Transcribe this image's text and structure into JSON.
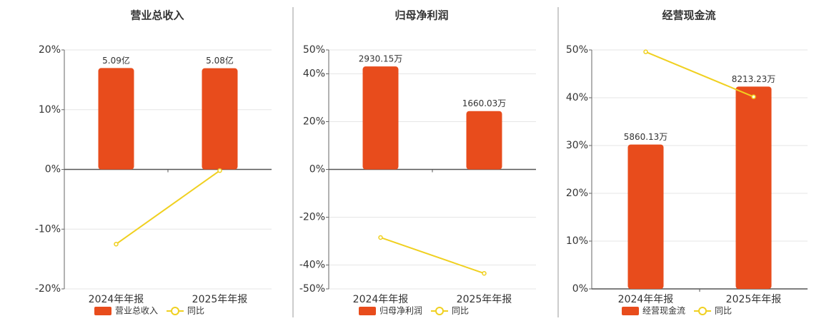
{
  "chart_data": [
    {
      "type": "bar",
      "title": "营业总收入",
      "categories": [
        "2024年年报",
        "2025年年报"
      ],
      "series": [
        {
          "name": "营业总收入",
          "type": "bar",
          "color": "#e84c1c",
          "axis": "y2",
          "values": [
            5.09,
            5.08
          ],
          "value_labels": [
            "5.09亿",
            "5.08亿"
          ]
        },
        {
          "name": "同比",
          "type": "line",
          "color": "#f0d020",
          "values": [
            -12.5,
            -0.2
          ]
        }
      ],
      "ylim": [
        -20,
        20
      ],
      "yticks": [
        {
          "value": -20,
          "label": "-20%"
        },
        {
          "value": -10,
          "label": "-10%"
        },
        {
          "value": 0,
          "label": "0%"
        },
        {
          "value": 10,
          "label": "10%"
        },
        {
          "value": 20,
          "label": "20%"
        }
      ],
      "y2lim": [
        -6,
        6
      ],
      "grid": true
    },
    {
      "type": "bar",
      "title": "归母净利润",
      "categories": [
        "2024年年报",
        "2025年年报"
      ],
      "series": [
        {
          "name": "归母净利润",
          "type": "bar",
          "color": "#e84c1c",
          "axis": "y2",
          "values": [
            2930.15,
            1660.03
          ],
          "value_labels": [
            "2930.15万",
            "1660.03万"
          ]
        },
        {
          "name": "同比",
          "type": "line",
          "color": "#f0d020",
          "values": [
            -28.5,
            -43.5
          ]
        }
      ],
      "ylim": [
        -50,
        50
      ],
      "yticks": [
        {
          "value": -50,
          "label": "-50%"
        },
        {
          "value": -40,
          "label": "-40%"
        },
        {
          "value": -20,
          "label": "-20%"
        },
        {
          "value": 0,
          "label": "0%"
        },
        {
          "value": 20,
          "label": "20%"
        },
        {
          "value": 40,
          "label": "40%"
        },
        {
          "value": 50,
          "label": "50%"
        }
      ],
      "y2lim": [
        -3400,
        3400
      ],
      "grid": true
    },
    {
      "type": "bar",
      "title": "经营现金流",
      "categories": [
        "2024年年报",
        "2025年年报"
      ],
      "series": [
        {
          "name": "经营现金流",
          "type": "bar",
          "color": "#e84c1c",
          "axis": "y2",
          "values": [
            5860.13,
            8213.23
          ],
          "value_labels": [
            "5860.13万",
            "8213.23万"
          ]
        },
        {
          "name": "同比",
          "type": "line",
          "color": "#f0d020",
          "values": [
            49.6,
            40.2
          ]
        }
      ],
      "ylim": [
        0,
        50
      ],
      "yticks": [
        {
          "value": 0,
          "label": "0%"
        },
        {
          "value": 10,
          "label": "10%"
        },
        {
          "value": 20,
          "label": "20%"
        },
        {
          "value": 30,
          "label": "30%"
        },
        {
          "value": 40,
          "label": "40%"
        },
        {
          "value": 50,
          "label": "50%"
        }
      ],
      "y2lim": [
        0,
        9700
      ],
      "grid": true
    }
  ]
}
